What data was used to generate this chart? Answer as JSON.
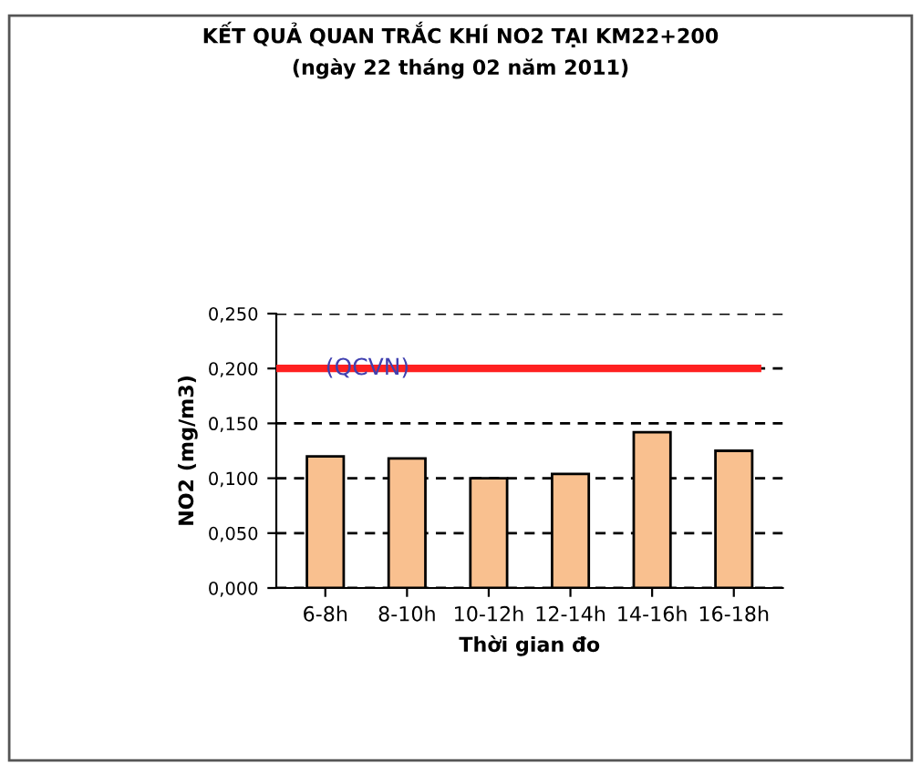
{
  "chart_data": {
    "type": "bar",
    "title": "KẾT QUẢ QUAN TRẮC KHÍ NO2 TẠI KM22+200",
    "subtitle": "(ngày 22 tháng 02 năm 2011)",
    "xlabel": "Thời gian đo",
    "ylabel": "NO2 (mg/m3)",
    "categories": [
      "6-8h",
      "8-10h",
      "10-12h",
      "12-14h",
      "14-16h",
      "16-18h"
    ],
    "values": [
      0.12,
      0.118,
      0.1,
      0.104,
      0.142,
      0.125
    ],
    "color": "#f9c08f",
    "ylim": [
      0,
      0.25
    ],
    "yticks": [
      {
        "value": 0,
        "label": "0,000"
      },
      {
        "value": 0.05,
        "label": "0,050"
      },
      {
        "value": 0.1,
        "label": "0,100"
      },
      {
        "value": 0.15,
        "label": "0,150"
      },
      {
        "value": 0.2,
        "label": "0,200"
      },
      {
        "value": 0.25,
        "label": "0,250"
      }
    ],
    "ref_lines": [
      {
        "axis": "y",
        "value": 0.2,
        "label": "(QCVN)",
        "color": "#ff2020"
      }
    ],
    "grid": "y"
  }
}
